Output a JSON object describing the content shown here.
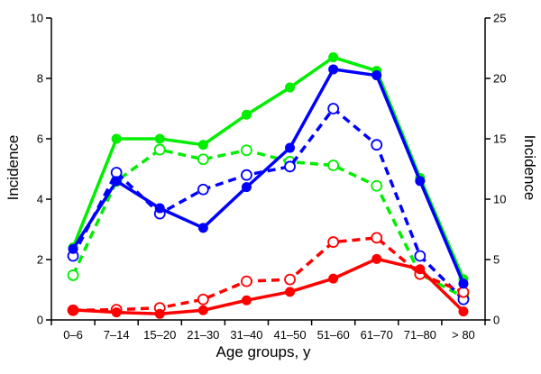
{
  "chart_data": {
    "type": "line",
    "xlabel": "Age groups, y",
    "ylabel_left": "Incidence",
    "ylabel_right": "Incidence",
    "categories": [
      "0–6",
      "7–14",
      "15–20",
      "21–30",
      "31–40",
      "41–50",
      "51–60",
      "61–70",
      "71–80",
      "> 80"
    ],
    "ylim_left": [
      0,
      10
    ],
    "yticks_left": [
      "0",
      "2",
      "4",
      "6",
      "8",
      "10"
    ],
    "ylim_right": [
      0,
      25
    ],
    "yticks_right": [
      "0",
      "5",
      "10",
      "15",
      "20",
      "25"
    ],
    "grid": false,
    "legend": "none",
    "series": [
      {
        "color": "#00ee00",
        "style": "solid",
        "marker": "filled",
        "axis": "left",
        "values": [
          2.4,
          6.0,
          6.0,
          5.8,
          6.8,
          7.7,
          8.7,
          8.25,
          4.7,
          1.35
        ]
      },
      {
        "color": "#0000ff",
        "style": "solid",
        "marker": "filled",
        "axis": "left",
        "values": [
          2.35,
          4.6,
          3.7,
          3.05,
          4.4,
          5.7,
          8.3,
          8.1,
          4.6,
          1.2
        ]
      },
      {
        "color": "#ff0000",
        "style": "solid",
        "marker": "filled",
        "axis": "left",
        "values": [
          0.33,
          0.25,
          0.2,
          0.32,
          0.65,
          0.93,
          1.37,
          2.02,
          1.68,
          0.28
        ]
      },
      {
        "color": "#00ee00",
        "style": "dashed",
        "marker": "open",
        "axis": "right",
        "values": [
          3.7,
          11.5,
          14.1,
          13.3,
          14.05,
          13.1,
          12.8,
          11.1,
          3.8,
          1.9
        ]
      },
      {
        "color": "#0000ff",
        "style": "dashed",
        "marker": "open",
        "axis": "right",
        "values": [
          5.3,
          12.2,
          8.8,
          10.8,
          12.0,
          12.7,
          17.5,
          14.5,
          5.3,
          1.7
        ]
      },
      {
        "color": "#ff0000",
        "style": "dashed",
        "marker": "open",
        "axis": "right",
        "values": [
          0.8,
          0.85,
          1.0,
          1.7,
          3.2,
          3.35,
          6.45,
          6.8,
          3.8,
          2.3
        ]
      }
    ]
  }
}
